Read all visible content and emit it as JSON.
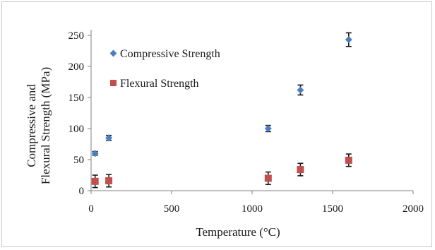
{
  "chart_data": {
    "type": "scatter",
    "title": "",
    "xlabel": "Temperature (°C)",
    "ylabel_lines": [
      "Compressive and",
      "Flexural Strength (MPa)"
    ],
    "xlim": [
      0,
      2000
    ],
    "ylim": [
      0,
      250
    ],
    "xticks": [
      0,
      500,
      1000,
      1500,
      2000
    ],
    "yticks": [
      0,
      50,
      100,
      150,
      200,
      250
    ],
    "grid": false,
    "legend_position": "top-left",
    "series": [
      {
        "name": "Compressive Strength",
        "marker": "diamond",
        "color": "#4a7fc1",
        "points": [
          {
            "x": 25,
            "y": 60,
            "err": 3
          },
          {
            "x": 110,
            "y": 85,
            "err": 4
          },
          {
            "x": 1100,
            "y": 100,
            "err": 5
          },
          {
            "x": 1300,
            "y": 162,
            "err": 8
          },
          {
            "x": 1600,
            "y": 243,
            "err": 11
          }
        ]
      },
      {
        "name": "Flexural Strength",
        "marker": "square",
        "color": "#c0504d",
        "points": [
          {
            "x": 25,
            "y": 15,
            "err": 10
          },
          {
            "x": 110,
            "y": 16,
            "err": 10
          },
          {
            "x": 1100,
            "y": 20,
            "err": 10
          },
          {
            "x": 1300,
            "y": 34,
            "err": 10
          },
          {
            "x": 1600,
            "y": 49,
            "err": 10
          }
        ]
      }
    ]
  }
}
